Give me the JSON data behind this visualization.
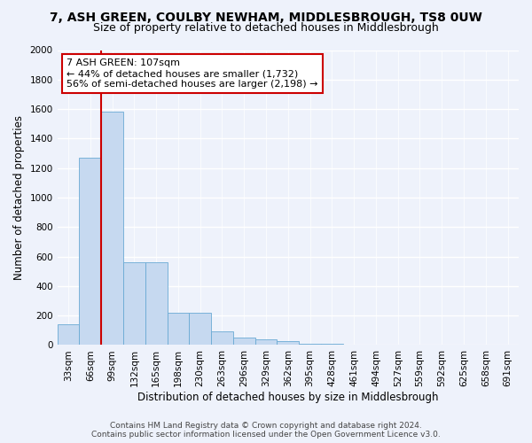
{
  "title_line1": "7, ASH GREEN, COULBY NEWHAM, MIDDLESBROUGH, TS8 0UW",
  "title_line2": "Size of property relative to detached houses in Middlesbrough",
  "xlabel": "Distribution of detached houses by size in Middlesbrough",
  "ylabel": "Number of detached properties",
  "footer_line1": "Contains HM Land Registry data © Crown copyright and database right 2024.",
  "footer_line2": "Contains public sector information licensed under the Open Government Licence v3.0.",
  "annotation_title": "7 ASH GREEN: 107sqm",
  "annotation_line1": "← 44% of detached houses are smaller (1,732)",
  "annotation_line2": "56% of semi-detached houses are larger (2,198) →",
  "bar_labels": [
    "33sqm",
    "66sqm",
    "99sqm",
    "132sqm",
    "165sqm",
    "198sqm",
    "230sqm",
    "263sqm",
    "296sqm",
    "329sqm",
    "362sqm",
    "395sqm",
    "428sqm",
    "461sqm",
    "494sqm",
    "527sqm",
    "559sqm",
    "592sqm",
    "625sqm",
    "658sqm",
    "691sqm"
  ],
  "bar_values": [
    140,
    1270,
    1580,
    560,
    560,
    220,
    220,
    95,
    50,
    40,
    25,
    10,
    10,
    0,
    0,
    0,
    0,
    0,
    0,
    0,
    0
  ],
  "bar_color": "#c6d9f0",
  "bar_edgecolor": "#6aaad4",
  "vline_x_idx": 2,
  "vline_color": "#cc0000",
  "ylim": [
    0,
    2000
  ],
  "yticks": [
    0,
    200,
    400,
    600,
    800,
    1000,
    1200,
    1400,
    1600,
    1800,
    2000
  ],
  "annotation_box_edgecolor": "#cc0000",
  "background_color": "#eef2fb",
  "grid_color": "#d0d8ee",
  "title_fontsize": 10,
  "subtitle_fontsize": 9,
  "axis_label_fontsize": 8.5,
  "tick_fontsize": 7.5,
  "annotation_fontsize": 8,
  "footer_fontsize": 6.5
}
